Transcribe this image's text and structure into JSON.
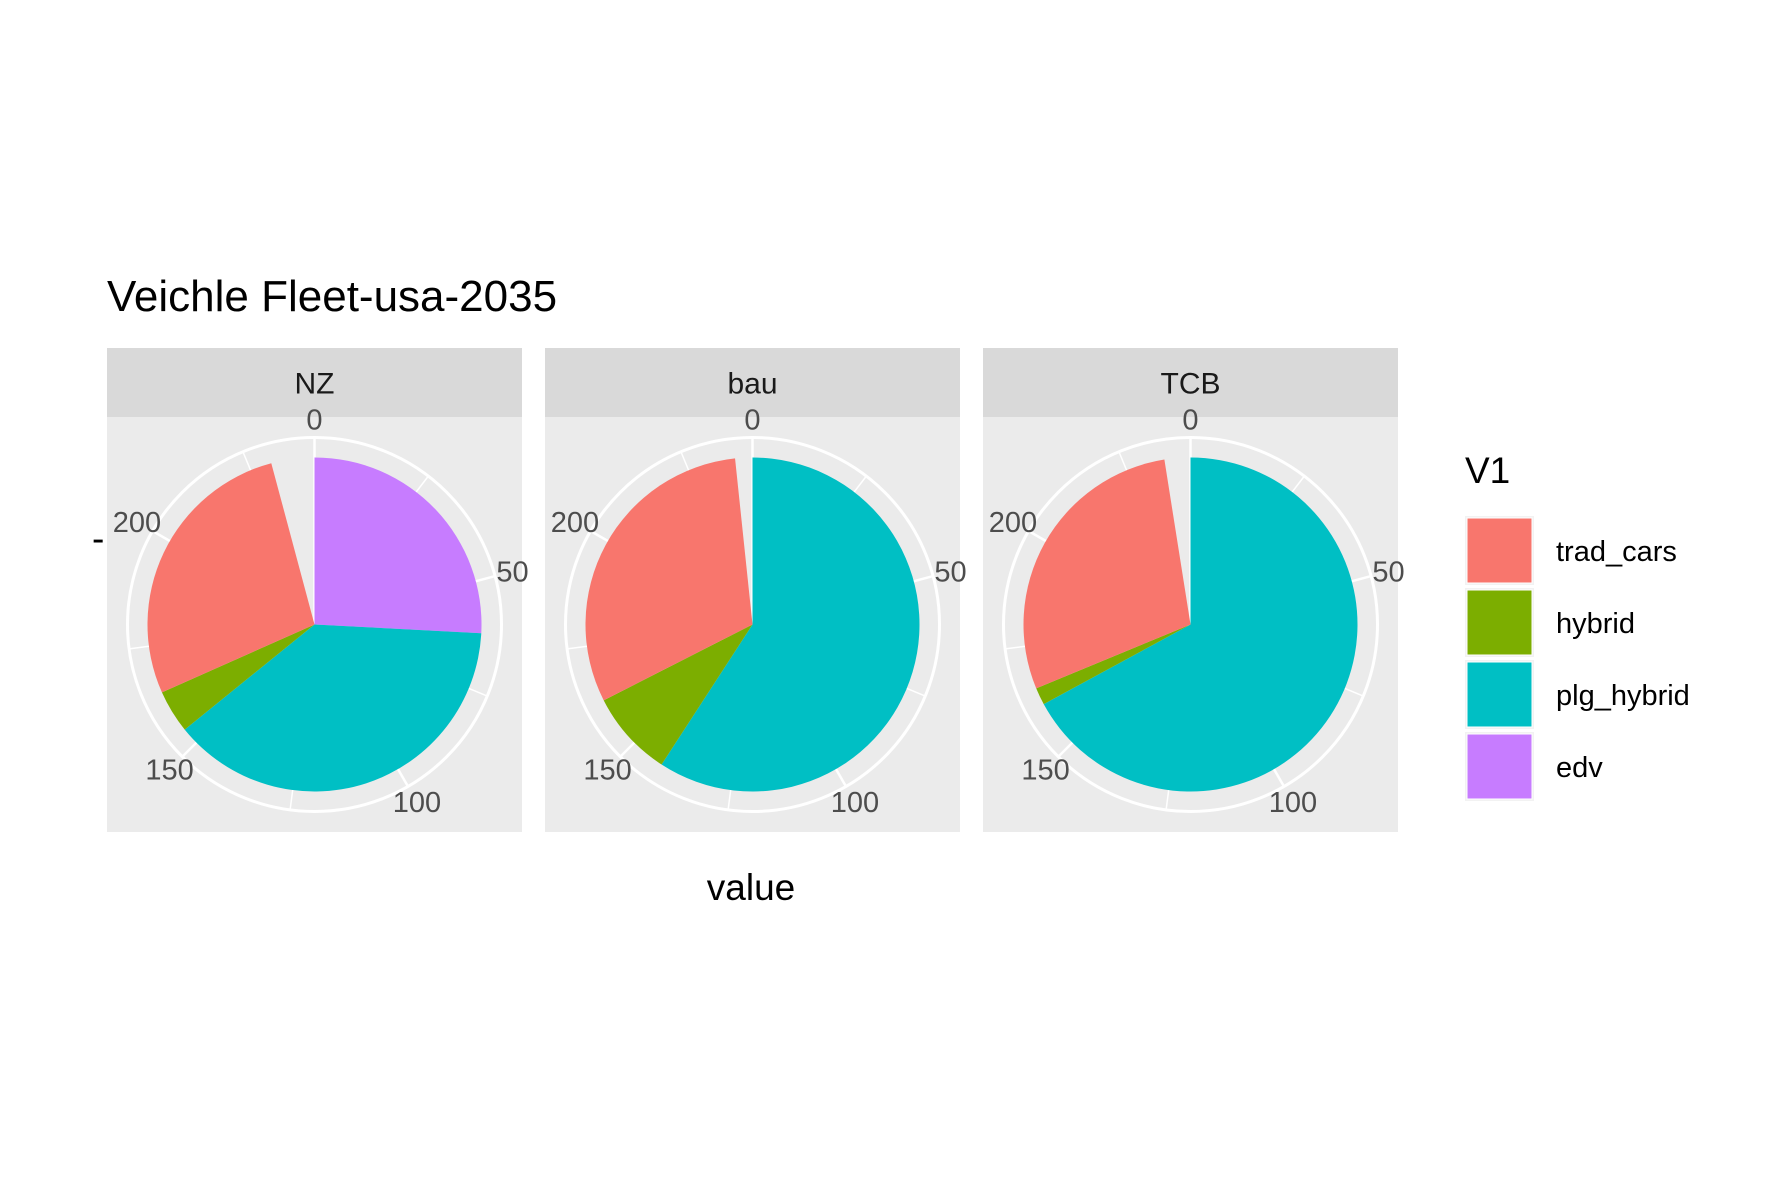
{
  "chart_data": {
    "type": "pie",
    "title": "Veichle Fleet-usa-2035",
    "xlabel": "value",
    "ylabel": "",
    "y_axis_tick": "-",
    "theta_range": [
      0,
      240
    ],
    "theta_ticks": [
      "0",
      "50",
      "100",
      "150",
      "200"
    ],
    "theta_tick_values": [
      0,
      50,
      100,
      150,
      200
    ],
    "legend": {
      "title": "V1",
      "position": "right",
      "entries": [
        {
          "label": "trad_cars",
          "color": "#F8766D"
        },
        {
          "label": "hybrid",
          "color": "#7CAE00"
        },
        {
          "label": "plg_hybrid",
          "color": "#00BFC4"
        },
        {
          "label": "edv",
          "color": "#C77CFF"
        }
      ]
    },
    "panels": [
      {
        "name": "NZ",
        "slices": [
          {
            "category": "edv",
            "value": 62
          },
          {
            "category": "plg_hybrid",
            "value": 92
          },
          {
            "category": "hybrid",
            "value": 10
          },
          {
            "category": "trad_cars",
            "value": 66
          }
        ]
      },
      {
        "name": "bau",
        "slices": [
          {
            "category": "edv",
            "value": 0
          },
          {
            "category": "plg_hybrid",
            "value": 142
          },
          {
            "category": "hybrid",
            "value": 20
          },
          {
            "category": "trad_cars",
            "value": 74
          }
        ]
      },
      {
        "name": "TCB",
        "slices": [
          {
            "category": "edv",
            "value": 0
          },
          {
            "category": "plg_hybrid",
            "value": 161
          },
          {
            "category": "hybrid",
            "value": 4
          },
          {
            "category": "trad_cars",
            "value": 69
          }
        ]
      }
    ]
  }
}
